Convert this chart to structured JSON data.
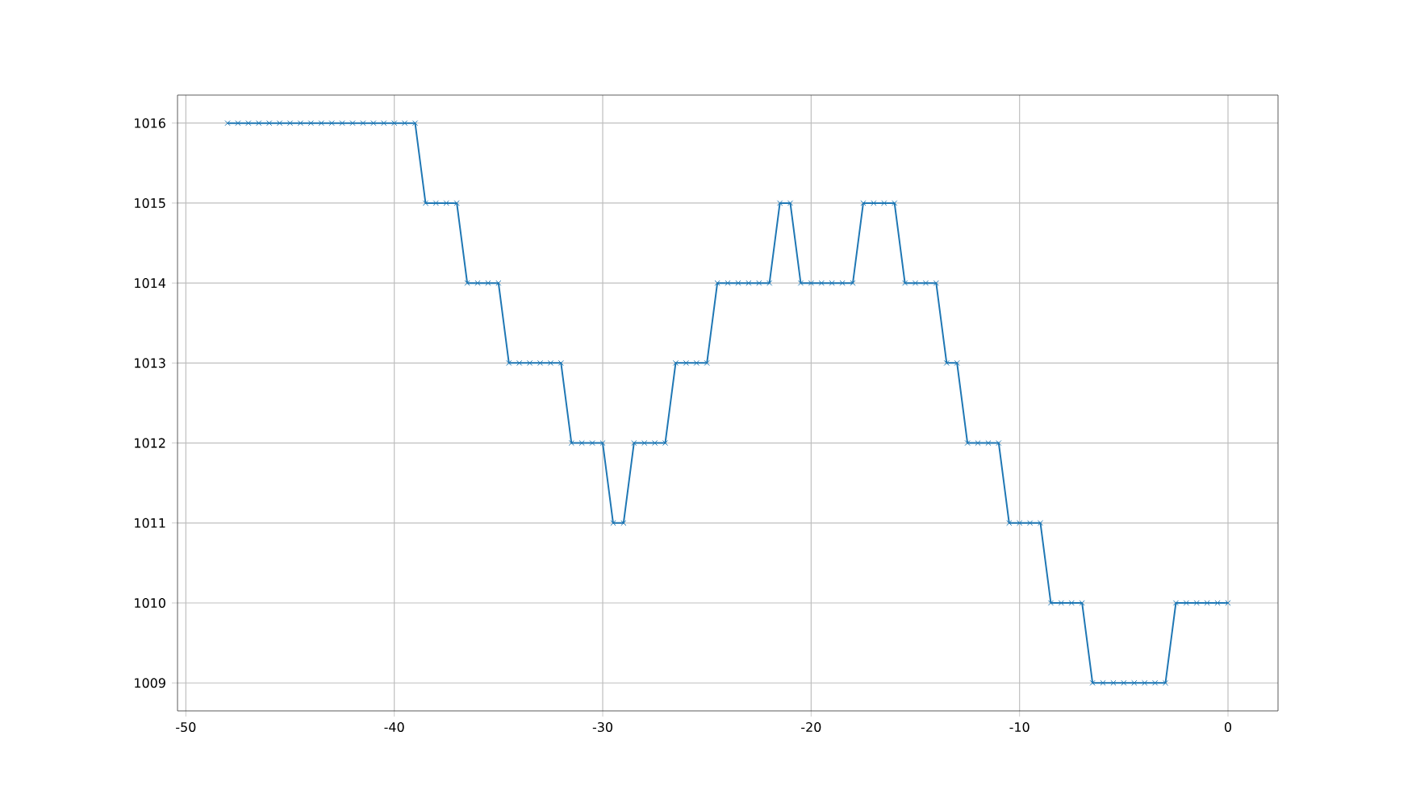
{
  "chart_data": {
    "type": "line",
    "x": [
      -48,
      -47.5,
      -47,
      -46.5,
      -46,
      -45.5,
      -45,
      -44.5,
      -44,
      -43.5,
      -43,
      -42.5,
      -42,
      -41.5,
      -41,
      -40.5,
      -40,
      -39.5,
      -39,
      -38.5,
      -38,
      -37.5,
      -37,
      -36.5,
      -36,
      -35.5,
      -35,
      -34.5,
      -34,
      -33.5,
      -33,
      -32.5,
      -32,
      -31.5,
      -31,
      -30.5,
      -30,
      -29.5,
      -29,
      -28.5,
      -28,
      -27.5,
      -27,
      -26.5,
      -26,
      -25.5,
      -25,
      -24.5,
      -24,
      -23.5,
      -23,
      -22.5,
      -22,
      -21.5,
      -21,
      -20.5,
      -20,
      -19.5,
      -19,
      -18.5,
      -18,
      -17.5,
      -17,
      -16.5,
      -16,
      -15.5,
      -15,
      -14.5,
      -14,
      -13.5,
      -13,
      -12.5,
      -12,
      -11.5,
      -11,
      -10.5,
      -10,
      -9.5,
      -9,
      -8.5,
      -8,
      -7.5,
      -7,
      -6.5,
      -6,
      -5.5,
      -5,
      -4.5,
      -4,
      -3.5,
      -3,
      -2.5,
      -2,
      -1.5,
      -1,
      -0.5,
      0
    ],
    "series": [
      {
        "color": "#1f77b4",
        "values": [
          1016,
          1016,
          1016,
          1016,
          1016,
          1016,
          1016,
          1016,
          1016,
          1016,
          1016,
          1016,
          1016,
          1016,
          1016,
          1016,
          1016,
          1016,
          1016,
          1015,
          1015,
          1015,
          1015,
          1014,
          1014,
          1014,
          1014,
          1013,
          1013,
          1013,
          1013,
          1013,
          1013,
          1012,
          1012,
          1012,
          1012,
          1011,
          1011,
          1012,
          1012,
          1012,
          1012,
          1013,
          1013,
          1013,
          1013,
          1014,
          1014,
          1014,
          1014,
          1014,
          1014,
          1015,
          1015,
          1014,
          1014,
          1014,
          1014,
          1014,
          1014,
          1015,
          1015,
          1015,
          1015,
          1014,
          1014,
          1014,
          1014,
          1013,
          1013,
          1012,
          1012,
          1012,
          1012,
          1011,
          1011,
          1011,
          1011,
          1010,
          1010,
          1010,
          1010,
          1009,
          1009,
          1009,
          1009,
          1009,
          1009,
          1009,
          1009,
          1010,
          1010,
          1010,
          1010,
          1010,
          1010
        ]
      }
    ],
    "xlim": [
      -50.4,
      2.4
    ],
    "ylim": [
      1008.65,
      1016.35
    ],
    "xticks": [
      -50,
      -40,
      -30,
      -20,
      -10,
      0
    ],
    "yticks": [
      1009,
      1010,
      1011,
      1012,
      1013,
      1014,
      1015,
      1016
    ],
    "grid": true,
    "marker": "cross",
    "line_style": "solid"
  }
}
